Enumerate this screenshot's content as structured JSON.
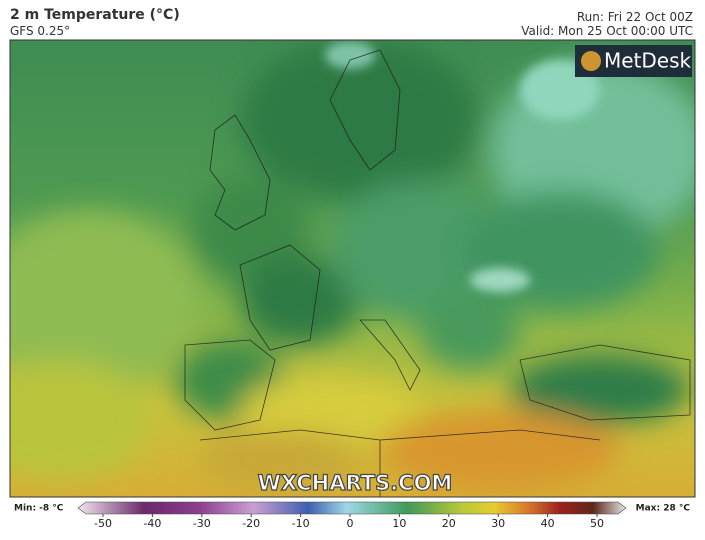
{
  "header": {
    "title": "2 m Temperature (°C)",
    "subtitle": "GFS 0.25°",
    "run": "Run: Fri 22 Oct 00Z",
    "valid": "Valid: Mon 25 Oct 00:00 UTC"
  },
  "map": {
    "logo": "MetDesk",
    "watermark": "WXCHARTS.COM"
  },
  "legend": {
    "min": "Min: -8 °C",
    "max": "Max: 28 °C",
    "ticks": [
      -50,
      -40,
      -30,
      -20,
      -10,
      0,
      10,
      20,
      30,
      40,
      50
    ]
  }
}
